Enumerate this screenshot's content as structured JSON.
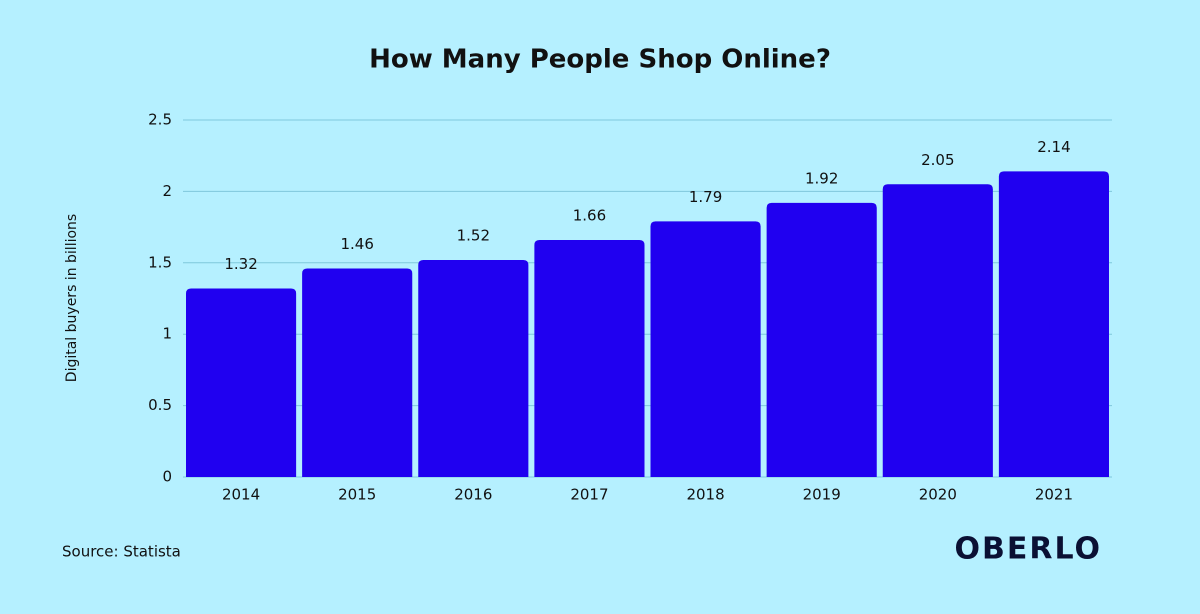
{
  "chart_data": {
    "type": "bar",
    "title": "How Many People Shop Online?",
    "y_label": "Digital buyers in billions",
    "categories": [
      "2014",
      "2015",
      "2016",
      "2017",
      "2018",
      "2019",
      "2020",
      "2021"
    ],
    "values": [
      1.32,
      1.46,
      1.52,
      1.66,
      1.79,
      1.92,
      2.05,
      2.14
    ],
    "color": "#2000f0",
    "ylim": [
      0,
      2.5
    ],
    "yticks": [
      0,
      0.5,
      1,
      1.5,
      2,
      2.5
    ],
    "grid": true,
    "source": "Source: Statista",
    "brand": "OBERLO"
  }
}
